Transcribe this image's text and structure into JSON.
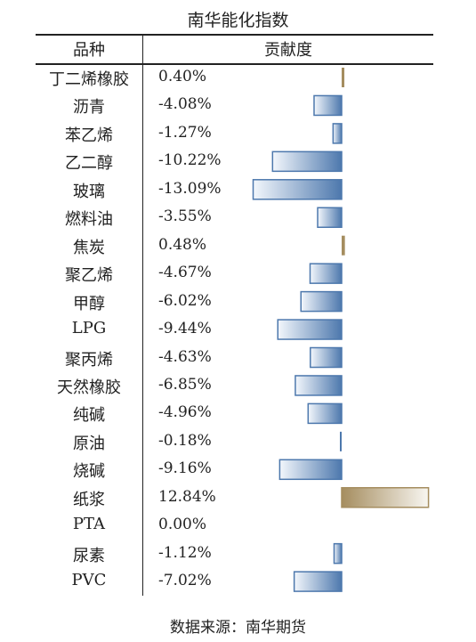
{
  "title": "南华能化指数",
  "header": {
    "col1": "品种",
    "col2": "贡献度"
  },
  "source": "数据来源：南华期货",
  "colors": {
    "negative": "#4d78ad",
    "positive": "#a58d5f"
  },
  "chart_data": {
    "type": "bar",
    "title": "南华能化指数",
    "categories": [
      "丁二烯橡胶",
      "沥青",
      "苯乙烯",
      "乙二醇",
      "玻璃",
      "燃料油",
      "焦炭",
      "聚乙烯",
      "甲醇",
      "LPG",
      "聚丙烯",
      "天然橡胶",
      "纯碱",
      "原油",
      "烧碱",
      "纸浆",
      "PTA",
      "尿素",
      "PVC"
    ],
    "values": [
      0.4,
      -4.08,
      -1.27,
      -10.22,
      -13.09,
      -3.55,
      0.48,
      -4.67,
      -6.02,
      -9.44,
      -4.63,
      -6.85,
      -4.96,
      -0.18,
      -9.16,
      12.84,
      0.0,
      -1.12,
      -7.02
    ],
    "labels": [
      "0.40%",
      "-4.08%",
      "-1.27%",
      "-10.22%",
      "-13.09%",
      "-3.55%",
      "0.48%",
      "-4.67%",
      "-6.02%",
      "-9.44%",
      "-4.63%",
      "-6.85%",
      "-4.96%",
      "-0.18%",
      "-9.16%",
      "12.84%",
      "0.00%",
      "-1.12%",
      "-7.02%"
    ],
    "unit": "%"
  }
}
